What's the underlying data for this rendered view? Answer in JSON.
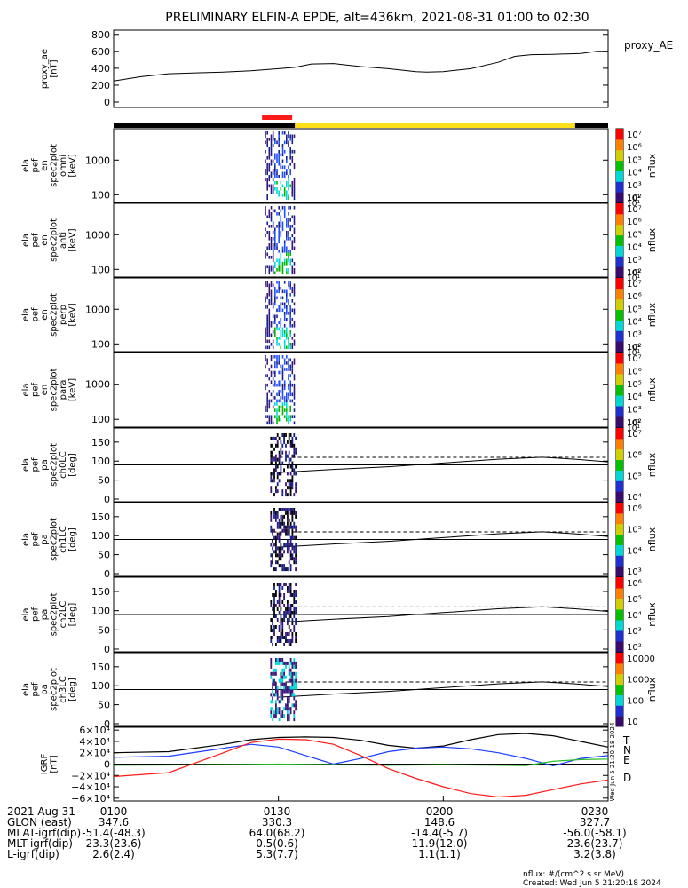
{
  "title": "PRELIMINARY ELFIN-A EPDE, alt=436km, 2021-08-31 01:00 to 02:30",
  "colors": {
    "ae_line": "#000000",
    "bar_black": "#000000",
    "bar_yellow": "#ffde1a",
    "bar_red": "#ff1a1a",
    "T": "#000000",
    "N": "#1a3cff",
    "E": "#22bb22",
    "D": "#ff1a1a",
    "spec_cols": [
      "#ff0000",
      "#00b400",
      "#00d7d7",
      "#1f4fff",
      "#18208c",
      "#3a167a"
    ]
  },
  "panels": {
    "proxy_ae": {
      "ylabel": [
        "proxy_ae",
        "[nT]"
      ],
      "ticks": [
        "0",
        "200",
        "400",
        "600",
        "800"
      ],
      "legend": "proxy_AE"
    },
    "energy": [
      {
        "ylabel": [
          "ela",
          "pef",
          "en",
          "spec2plot",
          "omni",
          "[keV]"
        ],
        "ticks": [
          "100",
          "1000"
        ],
        "cbar_ticks": [
          "10²",
          "10³",
          "10⁴",
          "10⁵",
          "10⁶",
          "10⁷"
        ],
        "cbar_extra": [
          "10¹",
          "10¹"
        ],
        "cbar_label": "nflux"
      },
      {
        "ylabel": [
          "ela",
          "pef",
          "en",
          "spec2plot",
          "anti",
          "[keV]"
        ],
        "ticks": [
          "100",
          "1000"
        ],
        "cbar_ticks": [
          "10²",
          "10³",
          "10⁴",
          "10⁵",
          "10⁶",
          "10⁷"
        ],
        "cbar_extra": [
          "10¹",
          "10¹"
        ],
        "cbar_label": "nflux"
      },
      {
        "ylabel": [
          "ela",
          "pef",
          "en",
          "spec2plot",
          "perp",
          "[keV]"
        ],
        "ticks": [
          "100",
          "1000"
        ],
        "cbar_ticks": [
          "10²",
          "10³",
          "10⁴",
          "10⁵",
          "10⁶",
          "10⁷"
        ],
        "cbar_extra": [
          "10¹",
          "10¹"
        ],
        "cbar_label": "nflux"
      },
      {
        "ylabel": [
          "ela",
          "pef",
          "en",
          "spec2plot",
          "para",
          "[keV]"
        ],
        "ticks": [
          "100",
          "1000"
        ],
        "cbar_ticks": [
          "10²",
          "10³",
          "10⁴",
          "10⁵",
          "10⁶",
          "10⁷"
        ],
        "cbar_extra": [
          "10¹",
          "10¹"
        ],
        "cbar_label": "nflux"
      }
    ],
    "pitch": [
      {
        "ylabel": [
          "ela",
          "pef",
          "pa",
          "spec2plot",
          "ch0LC",
          "[deg]"
        ],
        "ticks": [
          "0",
          "50",
          "100",
          "150"
        ],
        "cbar_ticks": [
          "10⁴",
          "10⁵",
          "10⁶",
          "10⁷"
        ],
        "cbar_label": "nflux"
      },
      {
        "ylabel": [
          "ela",
          "pef",
          "pa",
          "spec2plot",
          "ch1LC",
          "[deg]"
        ],
        "ticks": [
          "0",
          "50",
          "100",
          "150"
        ],
        "cbar_ticks": [
          "10³",
          "10⁴",
          "10⁵",
          "10⁶"
        ],
        "cbar_label": "nflux"
      },
      {
        "ylabel": [
          "ela",
          "pef",
          "pa",
          "spec2plot",
          "ch2LC",
          "[deg]"
        ],
        "ticks": [
          "0",
          "50",
          "100",
          "150"
        ],
        "cbar_ticks": [
          "10²",
          "10³",
          "10⁴",
          "10⁵",
          "10⁶"
        ],
        "cbar_label": "nflux"
      },
      {
        "ylabel": [
          "ela",
          "pef",
          "pa",
          "spec2plot",
          "ch3LC",
          "[deg]"
        ],
        "ticks": [
          "0",
          "50",
          "100",
          "150"
        ],
        "cbar_ticks": [
          "10",
          "100",
          "1000",
          "10000"
        ],
        "cbar_label": "nflux"
      }
    ],
    "igrf": {
      "ylabel": [
        "IGRF",
        "[nT]"
      ],
      "ticks": [
        "−6×10⁴",
        "−4×10⁴",
        "−2×10⁴",
        "0",
        "2×10⁴",
        "4×10⁴",
        "6×10⁴"
      ],
      "legend": [
        "T",
        "N",
        "E",
        "D"
      ],
      "created_vertical": "Wed Jun  5 21:20:18 2024"
    }
  },
  "orbit_table": {
    "rows": [
      {
        "label": "2021 Aug 31",
        "values": [
          "0100",
          "0130",
          "0200",
          "0230"
        ]
      },
      {
        "label": "GLON (east)",
        "values": [
          "347.6",
          "330.3",
          "148.6",
          "327.7"
        ]
      },
      {
        "label": "MLAT-igrf(dip)",
        "values": [
          "-51.4(-48.3)",
          "64.0(68.2)",
          "-14.4(-5.7)",
          "-56.0(-58.1)"
        ]
      },
      {
        "label": "MLT-igrf(dip)",
        "values": [
          "23.3(23.6)",
          "0.5(0.6)",
          "11.9(12.0)",
          "23.6(23.7)"
        ]
      },
      {
        "label": "L-igrf(dip)",
        "values": [
          "2.6(2.4)",
          "5.3(7.7)",
          "1.1(1.1)",
          "3.2(3.8)"
        ]
      }
    ]
  },
  "footer": {
    "units": "nflux: #/(cm^2 s sr MeV)",
    "created": "Created: Wed Jun  5 21:20:18 2024"
  },
  "chart_data": {
    "type": "line",
    "time_range": [
      "2021-08-31 01:00",
      "2021-08-31 02:30"
    ],
    "x_ticks": [
      "0100",
      "0130",
      "0200",
      "0230"
    ],
    "x_minutes": [
      0,
      30,
      60,
      90
    ],
    "proxy_ae": {
      "ylim": [
        0,
        850
      ],
      "x_min": [
        0,
        5,
        10,
        15,
        20,
        25,
        30,
        33,
        36,
        40,
        45,
        50,
        55,
        57,
        60,
        65,
        70,
        73,
        76,
        80,
        85,
        88,
        90
      ],
      "values": [
        250,
        300,
        335,
        345,
        355,
        370,
        395,
        410,
        450,
        455,
        420,
        395,
        360,
        355,
        360,
        395,
        470,
        540,
        560,
        565,
        575,
        600,
        600
      ]
    },
    "burst_window_minutes": [
      26.5,
      33.0
    ],
    "burst_marker_minutes": [
      27.0,
      32.5
    ],
    "energy_ylim_keV": [
      60,
      8000
    ],
    "pitch_ylim_deg": [
      0,
      180
    ],
    "pitch_reference_lines_deg": [
      90
    ],
    "loss_cone_dashed_deg": 110,
    "loss_cone_solid": {
      "x_min": [
        30,
        40,
        50,
        60,
        70,
        78,
        84,
        90
      ],
      "deg": [
        70,
        78,
        85,
        95,
        105,
        110,
        105,
        98
      ]
    },
    "igrf": {
      "ylim": [
        -65000,
        65000
      ],
      "x_min": [
        0,
        10,
        20,
        25,
        30,
        35,
        40,
        45,
        50,
        55,
        60,
        65,
        70,
        75,
        80,
        85,
        90
      ],
      "series": [
        {
          "name": "T",
          "values": [
            20000,
            22000,
            35000,
            43000,
            47000,
            48000,
            47000,
            42000,
            33000,
            28000,
            32000,
            43000,
            52000,
            54000,
            50000,
            40000,
            30000
          ]
        },
        {
          "name": "N",
          "values": [
            12000,
            14000,
            28000,
            35000,
            30000,
            15000,
            0,
            10000,
            22000,
            28000,
            30000,
            27000,
            20000,
            10000,
            -3000,
            10000,
            15000
          ]
        },
        {
          "name": "E",
          "values": [
            -2000,
            -1500,
            -1000,
            -500,
            0,
            -500,
            -1000,
            -1500,
            -2000,
            -1500,
            -1000,
            -1500,
            -2000,
            -2500,
            5000,
            8000,
            9000
          ]
        },
        {
          "name": "D",
          "values": [
            -22000,
            -15000,
            20000,
            38000,
            44000,
            43000,
            35000,
            15000,
            -8000,
            -25000,
            -40000,
            -52000,
            -58000,
            -55000,
            -45000,
            -35000,
            -28000
          ]
        }
      ]
    }
  }
}
